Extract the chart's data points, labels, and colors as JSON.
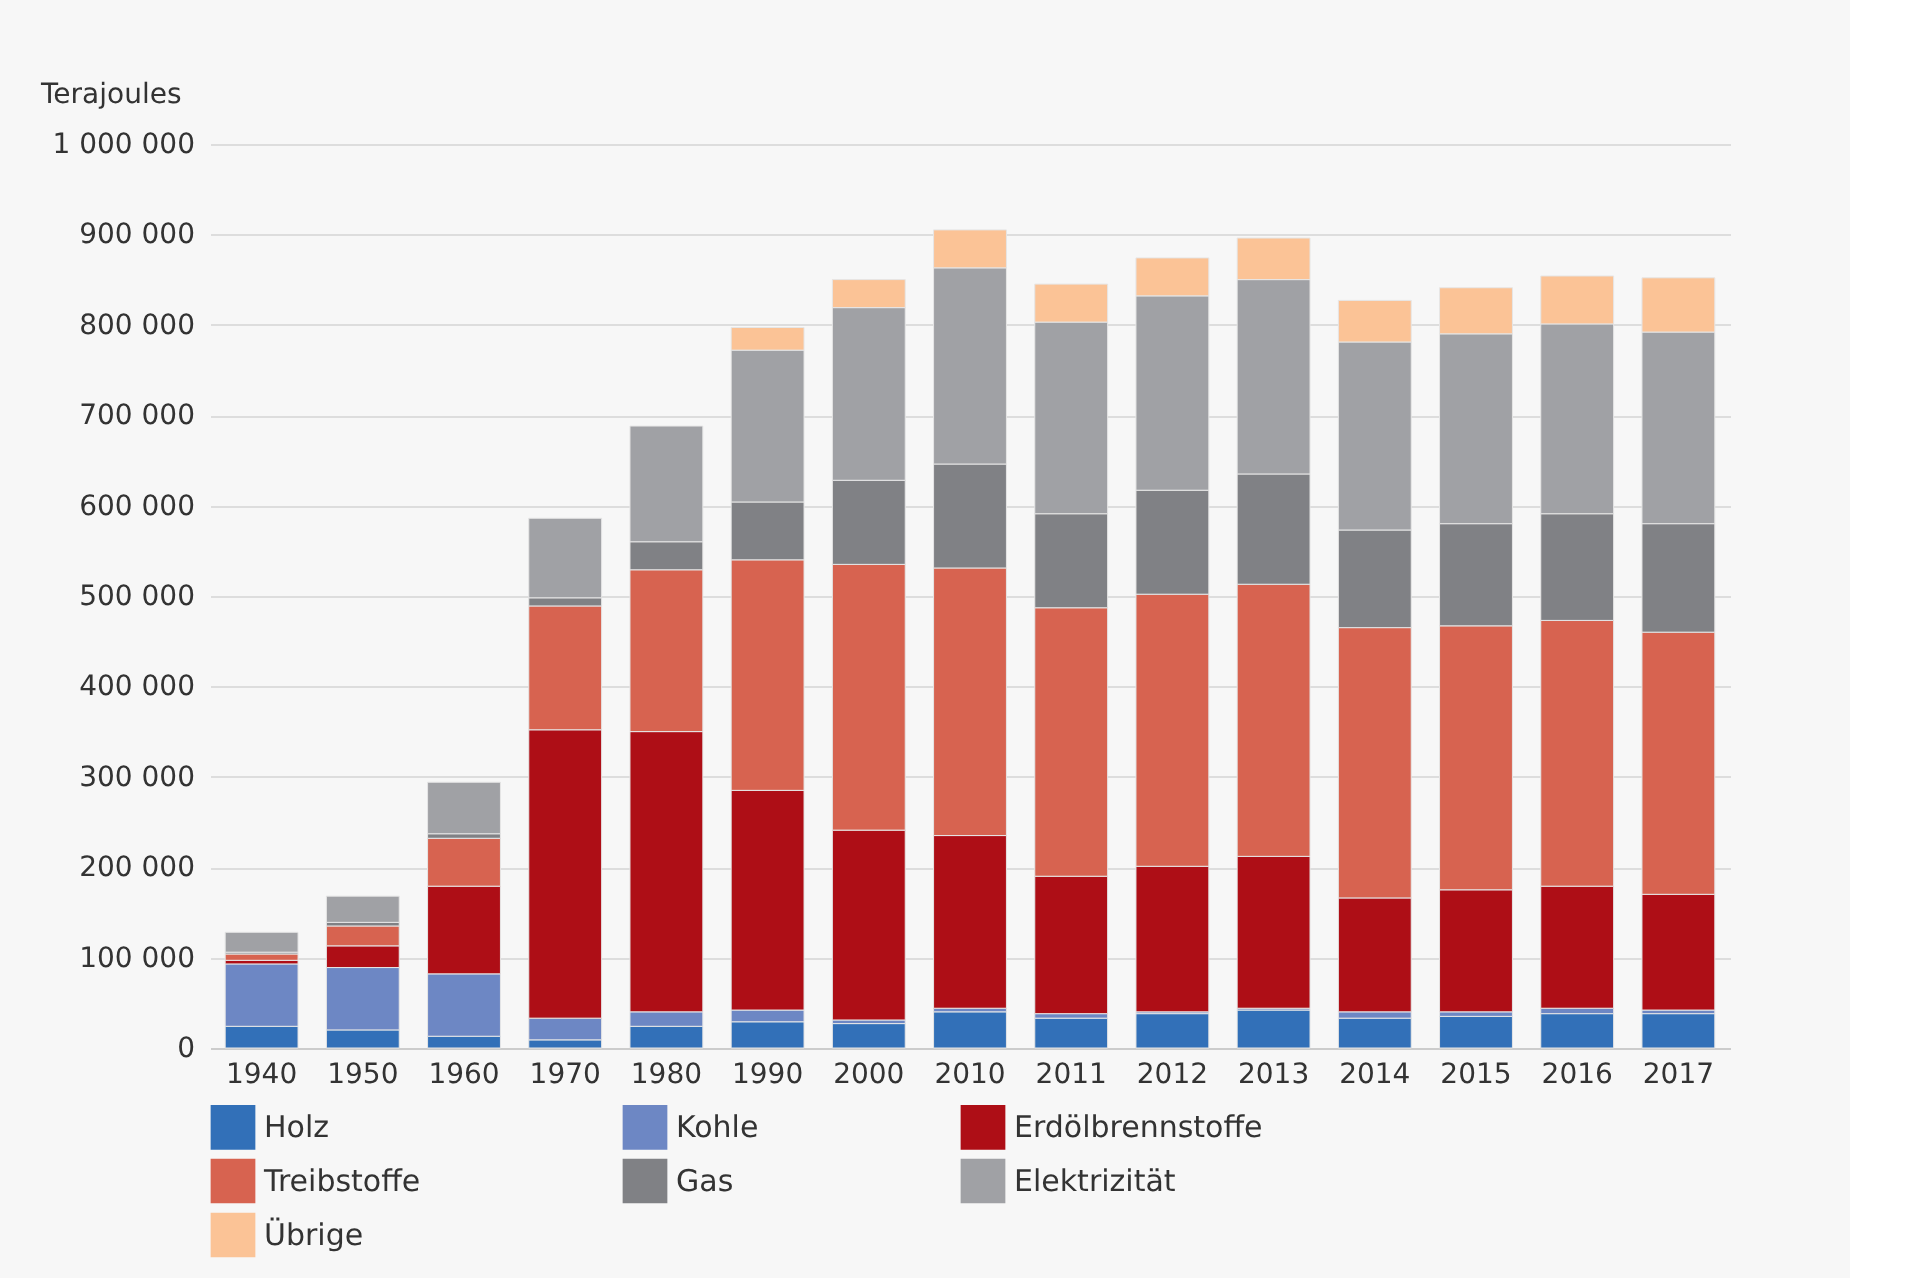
{
  "chart_data": {
    "type": "bar",
    "stacked": true,
    "ylabel": "Terajoules",
    "categories": [
      "1940",
      "1950",
      "1960",
      "1970",
      "1980",
      "1990",
      "2000",
      "2010",
      "2011",
      "2012",
      "2013",
      "2014",
      "2015",
      "2016",
      "2017"
    ],
    "series": [
      {
        "name": "Holz",
        "color": "#3270b8",
        "values": [
          24000,
          20000,
          13000,
          9000,
          24000,
          29000,
          27000,
          40000,
          33000,
          38000,
          42000,
          33000,
          35000,
          38000,
          38000
        ]
      },
      {
        "name": "Kohle",
        "color": "#6d87c4",
        "values": [
          69000,
          69000,
          69000,
          24000,
          16000,
          13000,
          4000,
          4000,
          5000,
          2000,
          2000,
          7000,
          5000,
          6000,
          4000
        ]
      },
      {
        "name": "Erdölbrennstoffe",
        "color": "#ae0e16",
        "values": [
          4000,
          24000,
          97000,
          319000,
          310000,
          243000,
          210000,
          191000,
          152000,
          161000,
          168000,
          126000,
          135000,
          135000,
          128000
        ]
      },
      {
        "name": "Treibstoffe",
        "color": "#d76350",
        "values": [
          7000,
          22000,
          53000,
          137000,
          179000,
          255000,
          294000,
          296000,
          297000,
          301000,
          301000,
          299000,
          292000,
          294000,
          290000
        ]
      },
      {
        "name": "Gas",
        "color": "#808185",
        "values": [
          2000,
          4000,
          5000,
          9000,
          31000,
          64000,
          93000,
          115000,
          104000,
          115000,
          122000,
          108000,
          113000,
          118000,
          120000
        ]
      },
      {
        "name": "Elektrizität",
        "color": "#a0a1a5",
        "values": [
          22000,
          29000,
          57000,
          88000,
          128000,
          168000,
          191000,
          217000,
          212000,
          215000,
          215000,
          208000,
          210000,
          210000,
          212000
        ]
      },
      {
        "name": "Übrige",
        "color": "#fbc396",
        "values": [
          null,
          null,
          null,
          null,
          null,
          25000,
          31000,
          42000,
          42000,
          42000,
          46000,
          46000,
          51000,
          53000,
          60000
        ]
      }
    ],
    "ylim": [
      0,
      1000000
    ],
    "yticks": [
      0,
      {
        "value": 100000,
        "label": "100 000"
      },
      {
        "value": 200000,
        "label": "200 000"
      },
      {
        "value": 300000,
        "label": "300 000"
      },
      {
        "value": 400000,
        "label": "400 000"
      },
      {
        "value": 500000,
        "label": "500 000"
      },
      {
        "value": 600000,
        "label": "600 000"
      },
      {
        "value": 700000,
        "label": "700 000"
      },
      {
        "value": 800000,
        "label": "800 000"
      },
      {
        "value": 900000,
        "label": "900 000"
      },
      {
        "value": 1000000,
        "label": "1 000 000"
      }
    ],
    "grid": "y",
    "legend": "bottom"
  }
}
